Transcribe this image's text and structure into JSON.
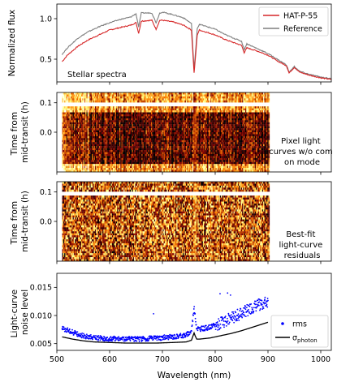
{
  "chart_data": [
    {
      "type": "line",
      "panel": "stellar-spectra",
      "ylabel": "Normalized flux",
      "annotation": "Stellar spectra",
      "xlim": [
        500,
        1020
      ],
      "ylim": [
        0.22,
        1.18
      ],
      "xticks": [
        500,
        600,
        700,
        800,
        900,
        1000
      ],
      "yticks": [
        0.5,
        1.0
      ],
      "ytick_labels": [
        "0.5",
        "1.0"
      ],
      "legend_position": "top-right",
      "series": [
        {
          "name": "HAT-P-55",
          "color": "#d62728",
          "x": [
            510,
            520,
            540,
            560,
            580,
            600,
            620,
            640,
            650,
            655,
            660,
            680,
            688,
            695,
            700,
            720,
            740,
            755,
            760,
            763,
            766,
            770,
            780,
            800,
            820,
            850,
            855,
            860,
            880,
            900,
            920,
            935,
            940,
            950,
            960,
            980,
            1000,
            1020
          ],
          "y": [
            0.47,
            0.55,
            0.66,
            0.74,
            0.8,
            0.86,
            0.89,
            0.92,
            0.95,
            0.82,
            0.97,
            0.98,
            0.87,
            0.98,
            0.98,
            0.96,
            0.92,
            0.86,
            0.33,
            0.55,
            0.8,
            0.86,
            0.84,
            0.8,
            0.74,
            0.67,
            0.58,
            0.64,
            0.6,
            0.55,
            0.47,
            0.42,
            0.33,
            0.4,
            0.34,
            0.3,
            0.27,
            0.25
          ]
        },
        {
          "name": "Reference",
          "color": "#7f7f7f",
          "x": [
            510,
            520,
            540,
            560,
            580,
            600,
            620,
            640,
            650,
            655,
            660,
            680,
            688,
            695,
            700,
            720,
            740,
            755,
            760,
            763,
            766,
            770,
            780,
            800,
            820,
            850,
            855,
            860,
            880,
            900,
            920,
            935,
            940,
            950,
            960,
            980,
            1000,
            1020
          ],
          "y": [
            0.56,
            0.64,
            0.76,
            0.84,
            0.9,
            0.95,
            0.99,
            1.02,
            1.06,
            0.9,
            1.07,
            1.07,
            0.95,
            1.07,
            1.08,
            1.05,
            1.01,
            0.94,
            0.38,
            0.61,
            0.88,
            0.93,
            0.91,
            0.87,
            0.8,
            0.72,
            0.62,
            0.69,
            0.63,
            0.57,
            0.49,
            0.43,
            0.34,
            0.41,
            0.35,
            0.31,
            0.28,
            0.26
          ]
        }
      ]
    },
    {
      "type": "heatmap",
      "panel": "pixel-light-curves",
      "ylabel": "Time from mid-transit (h)",
      "annotation": "Pixel light curves w/o common mode",
      "xlim": [
        500,
        1020
      ],
      "ylim": [
        -0.135,
        0.135
      ],
      "data_xrange": [
        510,
        903
      ],
      "yticks": [
        0.0,
        0.1
      ],
      "ytick_labels": [
        "0.0",
        "0.1"
      ],
      "gap_time": 0.096,
      "colormap": "afmhot"
    },
    {
      "type": "heatmap",
      "panel": "residuals",
      "ylabel": "Time from mid-transit (h)",
      "annotation": "Best-fit light-curve residuals",
      "xlim": [
        500,
        1020
      ],
      "ylim": [
        -0.135,
        0.135
      ],
      "data_xrange": [
        510,
        903
      ],
      "yticks": [
        0.0,
        0.1
      ],
      "ytick_labels": [
        "0.0",
        "0.1"
      ],
      "gap_time": 0.096,
      "colormap": "afmhot"
    },
    {
      "type": "scatter",
      "panel": "noise-level",
      "ylabel": "Light-curve noise level",
      "xlabel": "Wavelength (nm)",
      "xlim": [
        500,
        1020
      ],
      "ylim": [
        0.0038,
        0.0175
      ],
      "xticks": [
        500,
        600,
        700,
        800,
        900,
        1000
      ],
      "xtick_labels": [
        "500",
        "600",
        "700",
        "800",
        "900",
        "1000"
      ],
      "yticks": [
        0.005,
        0.01,
        0.015
      ],
      "ytick_labels": [
        "0.005",
        "0.010",
        "0.015"
      ],
      "legend_position": "bottom-right",
      "series": [
        {
          "name": "rms",
          "color": "#0000ff",
          "marker": "point",
          "x": [
            510,
            530,
            550,
            570,
            600,
            630,
            660,
            690,
            720,
            745,
            755,
            760,
            762,
            765,
            770,
            790,
            810,
            830,
            850,
            870,
            890,
            900
          ],
          "y": [
            0.0078,
            0.007,
            0.0064,
            0.006,
            0.0059,
            0.0058,
            0.0058,
            0.006,
            0.0062,
            0.0065,
            0.0072,
            0.0115,
            0.0098,
            0.0078,
            0.0076,
            0.0079,
            0.0086,
            0.0095,
            0.0104,
            0.0114,
            0.0122,
            0.0125
          ]
        },
        {
          "name": "σ_photon",
          "label_main": "σ",
          "label_sub": "photon",
          "color": "#000000",
          "x": [
            510,
            530,
            550,
            570,
            600,
            630,
            660,
            690,
            720,
            745,
            755,
            760,
            762,
            765,
            770,
            790,
            810,
            830,
            850,
            870,
            890,
            900
          ],
          "y": [
            0.0062,
            0.0058,
            0.0055,
            0.0053,
            0.0052,
            0.0051,
            0.0051,
            0.0051,
            0.0052,
            0.0053,
            0.0056,
            0.0069,
            0.0064,
            0.0058,
            0.0058,
            0.006,
            0.0064,
            0.0068,
            0.0073,
            0.0079,
            0.0085,
            0.0088
          ]
        }
      ]
    }
  ]
}
